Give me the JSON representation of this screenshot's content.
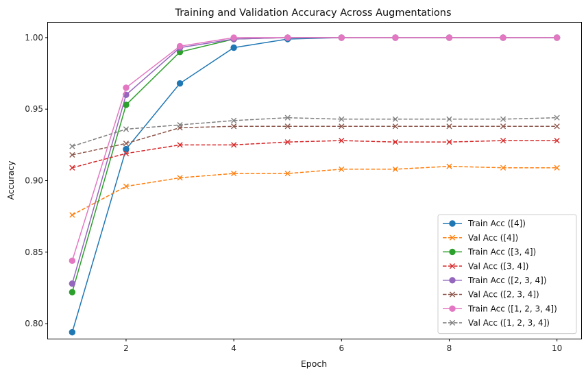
{
  "chart_data": {
    "type": "line",
    "title": "Training and Validation Accuracy Across Augmentations",
    "xlabel": "Epoch",
    "ylabel": "Accuracy",
    "xlim": [
      0.55,
      10.45
    ],
    "ylim": [
      0.7895,
      1.0105
    ],
    "x_ticks": [
      2,
      4,
      6,
      8,
      10
    ],
    "y_ticks": [
      0.8,
      0.85,
      0.9,
      0.95,
      1.0
    ],
    "y_tick_labels": [
      "0.80",
      "0.85",
      "0.90",
      "0.95",
      "1.00"
    ],
    "x": [
      1,
      2,
      3,
      4,
      5,
      6,
      7,
      8,
      9,
      10
    ],
    "legend_position": "lower-right",
    "grid": false,
    "series": [
      {
        "name": "Train Acc ([4])",
        "color": "#1f77b4",
        "style": "solid",
        "marker": "circle",
        "values": [
          0.794,
          0.922,
          0.968,
          0.993,
          0.999,
          1.0,
          1.0,
          1.0,
          1.0,
          1.0
        ]
      },
      {
        "name": "Val Acc ([4])",
        "color": "#ff7f0e",
        "style": "dashed",
        "marker": "x",
        "values": [
          0.876,
          0.896,
          0.902,
          0.905,
          0.905,
          0.908,
          0.908,
          0.91,
          0.909,
          0.909
        ]
      },
      {
        "name": "Train Acc ([3, 4])",
        "color": "#2ca02c",
        "style": "solid",
        "marker": "circle",
        "values": [
          0.822,
          0.953,
          0.99,
          0.999,
          1.0,
          1.0,
          1.0,
          1.0,
          1.0,
          1.0
        ]
      },
      {
        "name": "Val Acc ([3, 4])",
        "color": "#d62728",
        "style": "dashed",
        "marker": "x",
        "values": [
          0.909,
          0.919,
          0.925,
          0.925,
          0.927,
          0.928,
          0.927,
          0.927,
          0.928,
          0.928
        ]
      },
      {
        "name": "Train Acc ([2, 3, 4])",
        "color": "#9467bd",
        "style": "solid",
        "marker": "circle",
        "values": [
          0.828,
          0.96,
          0.993,
          0.999,
          1.0,
          1.0,
          1.0,
          1.0,
          1.0,
          1.0
        ]
      },
      {
        "name": "Val Acc ([2, 3, 4])",
        "color": "#8c564b",
        "style": "dashed",
        "marker": "x",
        "values": [
          0.918,
          0.926,
          0.937,
          0.938,
          0.938,
          0.938,
          0.938,
          0.938,
          0.938,
          0.938
        ]
      },
      {
        "name": "Train Acc ([1, 2, 3, 4])",
        "color": "#e377c2",
        "style": "solid",
        "marker": "circle",
        "values": [
          0.844,
          0.965,
          0.994,
          1.0,
          1.0,
          1.0,
          1.0,
          1.0,
          1.0,
          1.0
        ]
      },
      {
        "name": "Val Acc ([1, 2, 3, 4])",
        "color": "#7f7f7f",
        "style": "dashed",
        "marker": "x",
        "values": [
          0.924,
          0.936,
          0.939,
          0.942,
          0.944,
          0.943,
          0.943,
          0.943,
          0.943,
          0.944
        ]
      }
    ]
  }
}
